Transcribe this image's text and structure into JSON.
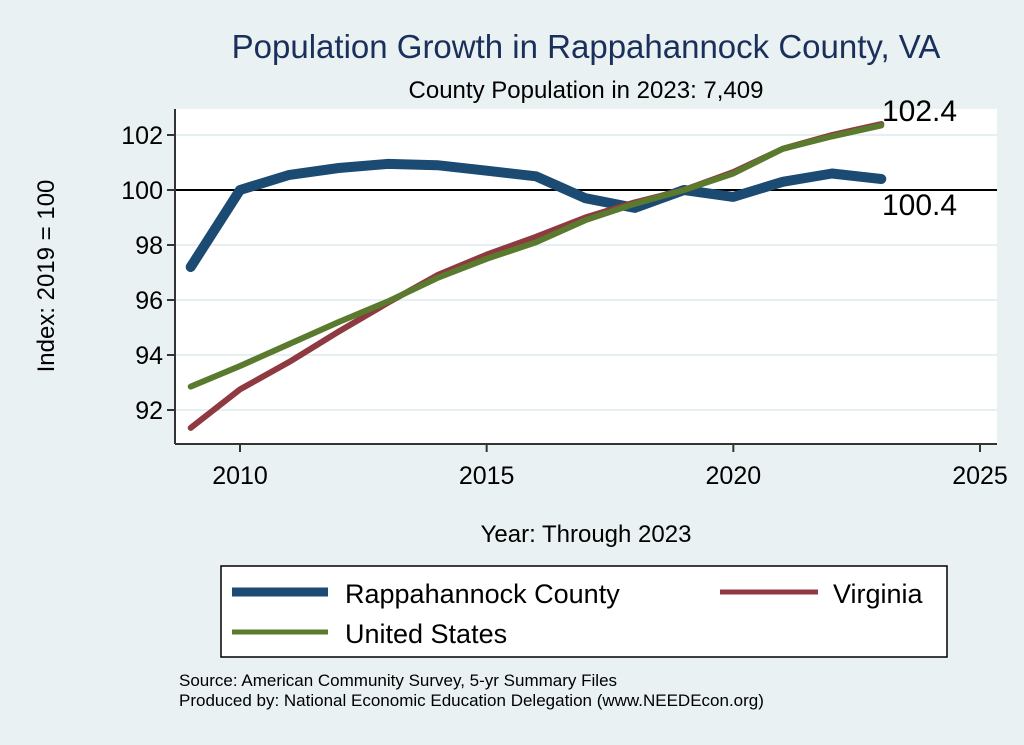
{
  "chart_data": {
    "type": "line",
    "title": "Population Growth in Rappahannock County, VA",
    "subtitle": "County Population in 2023: 7,409",
    "xlabel": "Year: Through 2023",
    "ylabel": "Index: 2019 = 100",
    "xlim": [
      2008.9,
      2025.4
    ],
    "ylim": [
      90.8,
      103.0
    ],
    "x_ticks": [
      2010,
      2015,
      2020,
      2025
    ],
    "x_tick_labels": [
      "2010",
      "2015",
      "2020",
      "2025"
    ],
    "y_ticks": [
      92,
      94,
      96,
      98,
      100,
      102
    ],
    "y_tick_labels": [
      "92",
      "94",
      "96",
      "98",
      "100",
      "102"
    ],
    "reference_line": 100,
    "grid": true,
    "x": [
      2009,
      2010,
      2011,
      2012,
      2013,
      2014,
      2015,
      2016,
      2017,
      2018,
      2019,
      2020,
      2021,
      2022,
      2023
    ],
    "series": [
      {
        "name": "Rappahannock  County",
        "color": "#1b4a72",
        "values": [
          97.2,
          100.0,
          100.55,
          100.8,
          100.95,
          100.9,
          100.7,
          100.5,
          99.7,
          99.35,
          100.0,
          99.75,
          100.3,
          100.6,
          100.4
        ]
      },
      {
        "name": "Virginia",
        "color": "#8e3a40",
        "values": [
          91.35,
          92.75,
          93.75,
          94.85,
          95.9,
          96.9,
          97.65,
          98.3,
          99.0,
          99.55,
          100.0,
          100.65,
          101.5,
          102.0,
          102.4
        ]
      },
      {
        "name": "United States",
        "color": "#5a7a2e",
        "values": [
          92.85,
          93.6,
          94.4,
          95.2,
          95.95,
          96.8,
          97.5,
          98.1,
          98.9,
          99.5,
          100.0,
          100.6,
          101.5,
          101.95,
          102.35
        ]
      }
    ],
    "end_labels": [
      "102.4",
      "100.4"
    ],
    "legend": {
      "placement": "bottom",
      "entries": [
        "Rappahannock  County",
        "Virginia",
        "United States"
      ]
    },
    "notes": [
      "Source: American Community Survey, 5-yr Summary Files",
      "Produced by: National Economic Education Delegation (www.NEEDEcon.org)"
    ]
  }
}
